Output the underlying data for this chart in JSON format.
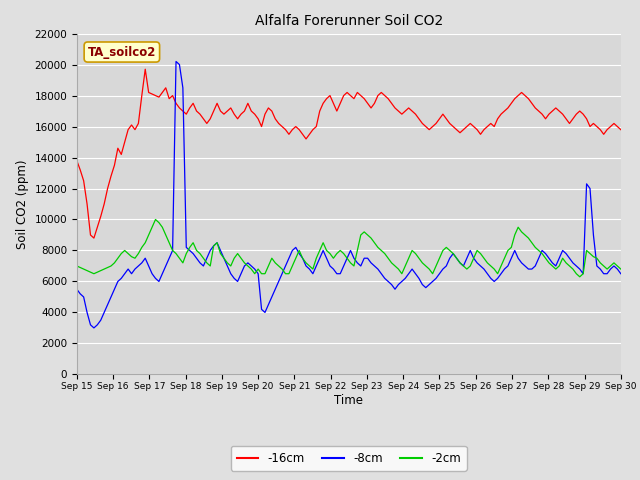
{
  "title": "Alfalfa Forerunner Soil CO2",
  "ylabel": "Soil CO2 (ppm)",
  "xlabel": "Time",
  "annotation": "TA_soilco2",
  "ylim": [
    0,
    22000
  ],
  "fig_bg_color": "#e0e0e0",
  "plot_bg_color": "#d8d8d8",
  "x_tick_labels": [
    "Sep 15",
    "Sep 16",
    "Sep 17",
    "Sep 18",
    "Sep 19",
    "Sep 20",
    "Sep 21",
    "Sep 22",
    "Sep 23",
    "Sep 24",
    "Sep 25",
    "Sep 26",
    "Sep 27",
    "Sep 28",
    "Sep 29",
    "Sep 30"
  ],
  "red_data": [
    13800,
    13200,
    12500,
    11000,
    9000,
    8800,
    9500,
    10200,
    11000,
    12000,
    12800,
    13500,
    14600,
    14200,
    15000,
    15800,
    16100,
    15800,
    16200,
    18000,
    19700,
    18200,
    18100,
    18000,
    17900,
    18200,
    18500,
    17800,
    18000,
    17500,
    17200,
    17000,
    16800,
    17200,
    17500,
    17000,
    16800,
    16500,
    16200,
    16500,
    17000,
    17500,
    17000,
    16800,
    17000,
    17200,
    16800,
    16500,
    16800,
    17000,
    17500,
    17000,
    16800,
    16500,
    16000,
    16800,
    17200,
    17000,
    16500,
    16200,
    16000,
    15800,
    15500,
    15800,
    16000,
    15800,
    15500,
    15200,
    15500,
    15800,
    16000,
    17000,
    17500,
    17800,
    18000,
    17500,
    17000,
    17500,
    18000,
    18200,
    18000,
    17800,
    18200,
    18000,
    17800,
    17500,
    17200,
    17500,
    18000,
    18200,
    18000,
    17800,
    17500,
    17200,
    17000,
    16800,
    17000,
    17200,
    17000,
    16800,
    16500,
    16200,
    16000,
    15800,
    16000,
    16200,
    16500,
    16800,
    16500,
    16200,
    16000,
    15800,
    15600,
    15800,
    16000,
    16200,
    16000,
    15800,
    15500,
    15800,
    16000,
    16200,
    16000,
    16500,
    16800,
    17000,
    17200,
    17500,
    17800,
    18000,
    18200,
    18000,
    17800,
    17500,
    17200,
    17000,
    16800,
    16500,
    16800,
    17000,
    17200,
    17000,
    16800,
    16500,
    16200,
    16500,
    16800,
    17000,
    16800,
    16500,
    16000,
    16200,
    16000,
    15800,
    15500,
    15800,
    16000,
    16200,
    16000,
    15800
  ],
  "blue_data": [
    5500,
    5200,
    5000,
    4000,
    3200,
    3000,
    3200,
    3500,
    4000,
    4500,
    5000,
    5500,
    6000,
    6200,
    6500,
    6800,
    6500,
    6800,
    7000,
    7200,
    7500,
    7000,
    6500,
    6200,
    6000,
    6500,
    7000,
    7500,
    8000,
    20200,
    20000,
    18500,
    8200,
    8000,
    7800,
    7500,
    7200,
    7000,
    7500,
    8000,
    8300,
    8500,
    8000,
    7500,
    7000,
    6500,
    6200,
    6000,
    6500,
    7000,
    7200,
    7000,
    6800,
    6500,
    4200,
    4000,
    4500,
    5000,
    5500,
    6000,
    6500,
    7000,
    7500,
    8000,
    8200,
    7800,
    7500,
    7000,
    6800,
    6500,
    7000,
    7500,
    8000,
    7500,
    7000,
    6800,
    6500,
    6500,
    7000,
    7500,
    8000,
    7500,
    7200,
    7000,
    7500,
    7500,
    7200,
    7000,
    6800,
    6500,
    6200,
    6000,
    5800,
    5500,
    5800,
    6000,
    6200,
    6500,
    6800,
    6500,
    6200,
    5800,
    5600,
    5800,
    6000,
    6200,
    6500,
    6800,
    7000,
    7500,
    7800,
    7500,
    7200,
    7000,
    7500,
    8000,
    7500,
    7200,
    7000,
    6800,
    6500,
    6200,
    6000,
    6200,
    6500,
    6800,
    7000,
    7500,
    8000,
    7500,
    7200,
    7000,
    6800,
    6800,
    7000,
    7500,
    8000,
    7800,
    7500,
    7200,
    7000,
    7500,
    8000,
    7800,
    7500,
    7200,
    7000,
    6800,
    6500,
    12300,
    12000,
    9000,
    7000,
    6800,
    6500,
    6500,
    6800,
    7000,
    6800,
    6500
  ],
  "green_data": [
    7000,
    6900,
    6800,
    6700,
    6600,
    6500,
    6600,
    6700,
    6800,
    6900,
    7000,
    7200,
    7500,
    7800,
    8000,
    7800,
    7600,
    7500,
    7800,
    8200,
    8500,
    9000,
    9500,
    10000,
    9800,
    9500,
    9000,
    8500,
    8000,
    7800,
    7500,
    7200,
    7800,
    8200,
    8500,
    8000,
    7800,
    7500,
    7200,
    7000,
    8300,
    8500,
    7800,
    7500,
    7200,
    7000,
    7500,
    7800,
    7500,
    7200,
    7000,
    6800,
    6500,
    6800,
    6500,
    6500,
    7000,
    7500,
    7200,
    7000,
    6800,
    6500,
    6500,
    7000,
    7500,
    8000,
    7500,
    7200,
    7000,
    6800,
    7500,
    8000,
    8500,
    8000,
    7800,
    7500,
    7800,
    8000,
    7800,
    7500,
    7200,
    7000,
    8000,
    9000,
    9200,
    9000,
    8800,
    8500,
    8200,
    8000,
    7800,
    7500,
    7200,
    7000,
    6800,
    6500,
    7000,
    7500,
    8000,
    7800,
    7500,
    7200,
    7000,
    6800,
    6500,
    7000,
    7500,
    8000,
    8200,
    8000,
    7800,
    7500,
    7200,
    7000,
    6800,
    7000,
    7500,
    8000,
    7800,
    7500,
    7200,
    7000,
    6800,
    6500,
    7000,
    7500,
    8000,
    8200,
    9000,
    9500,
    9200,
    9000,
    8800,
    8500,
    8200,
    8000,
    7800,
    7500,
    7200,
    7000,
    6800,
    7000,
    7500,
    7200,
    7000,
    6800,
    6500,
    6300,
    6500,
    8000,
    7800,
    7600,
    7500,
    7200,
    7000,
    6800,
    7000,
    7200,
    7000,
    6800
  ]
}
